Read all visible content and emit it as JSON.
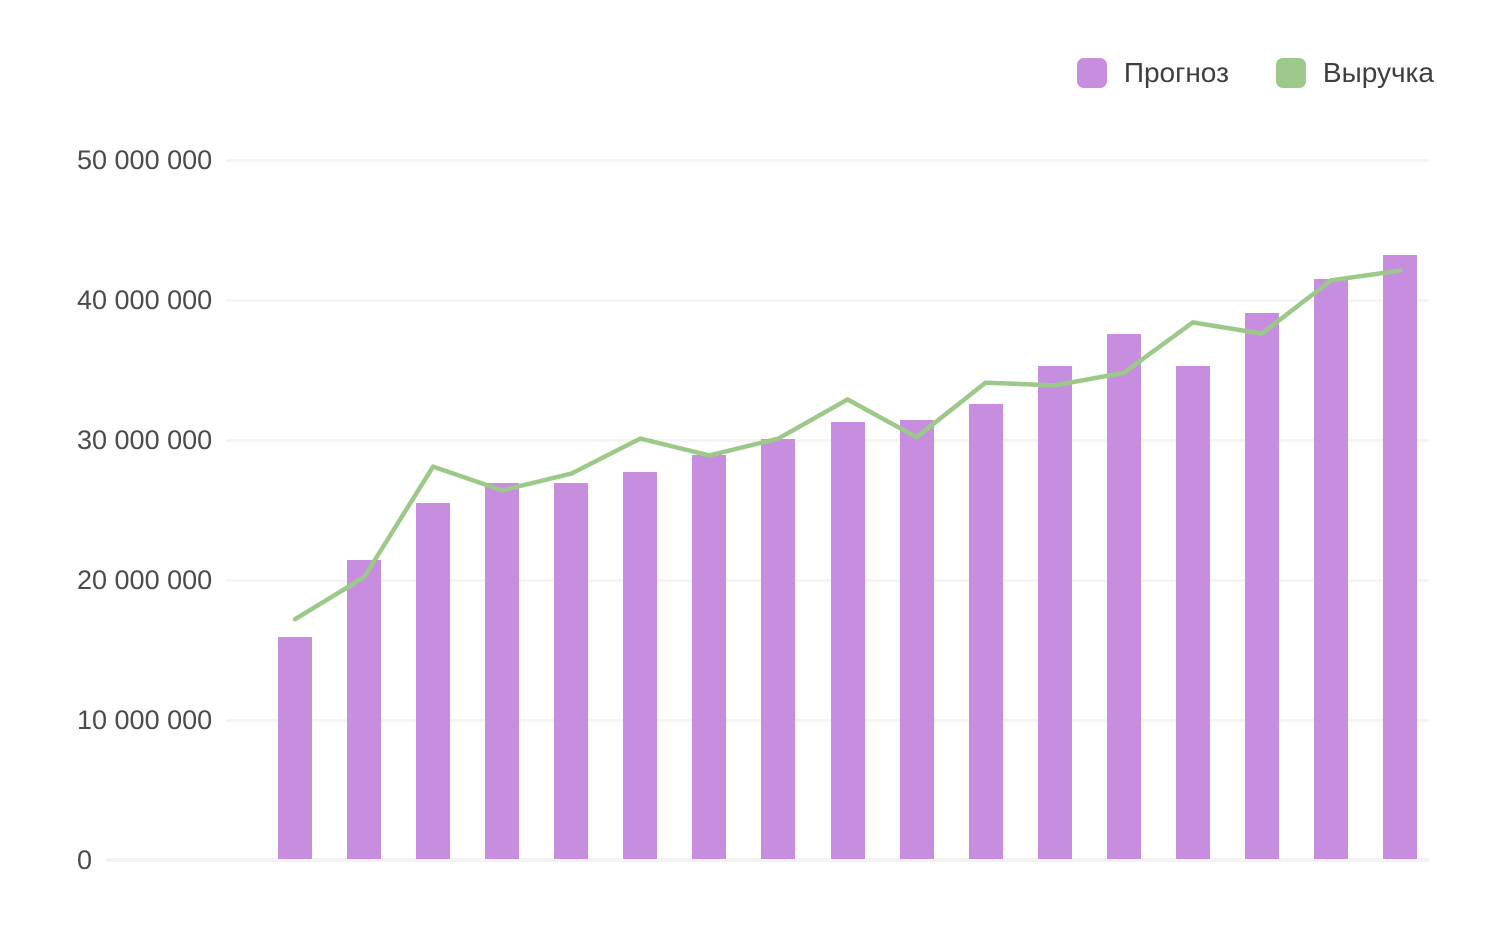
{
  "legend": {
    "items": [
      {
        "label": "Прогноз",
        "color": "#c78dde"
      },
      {
        "label": "Выручка",
        "color": "#9cc98a"
      }
    ]
  },
  "chart_data": {
    "type": "bar+line",
    "title": "",
    "point_count": 17,
    "x_axis_labels_visible": false,
    "series": [
      {
        "name": "Прогноз",
        "type": "bar",
        "color": "#c78dde",
        "values": [
          15900000,
          21400000,
          25500000,
          26900000,
          26900000,
          27700000,
          28900000,
          30100000,
          31300000,
          31400000,
          32600000,
          35300000,
          37600000,
          35300000,
          39100000,
          41500000,
          43200000
        ]
      },
      {
        "name": "Выручка",
        "type": "line",
        "color": "#9cc98a",
        "values": [
          17200000,
          20200000,
          28100000,
          26400000,
          27600000,
          30100000,
          28900000,
          30100000,
          32900000,
          30200000,
          34100000,
          33900000,
          34800000,
          38400000,
          37600000,
          41400000,
          42100000
        ]
      }
    ],
    "ylim": [
      0,
      50000000
    ],
    "y_ticks": [
      0,
      10000000,
      20000000,
      30000000,
      40000000,
      50000000
    ],
    "y_tick_labels": [
      "0",
      "10 000 000",
      "20 000 000",
      "30 000 000",
      "40 000 000",
      "50 000 000"
    ],
    "grid": "horizontal",
    "legend_position": "top-right"
  }
}
